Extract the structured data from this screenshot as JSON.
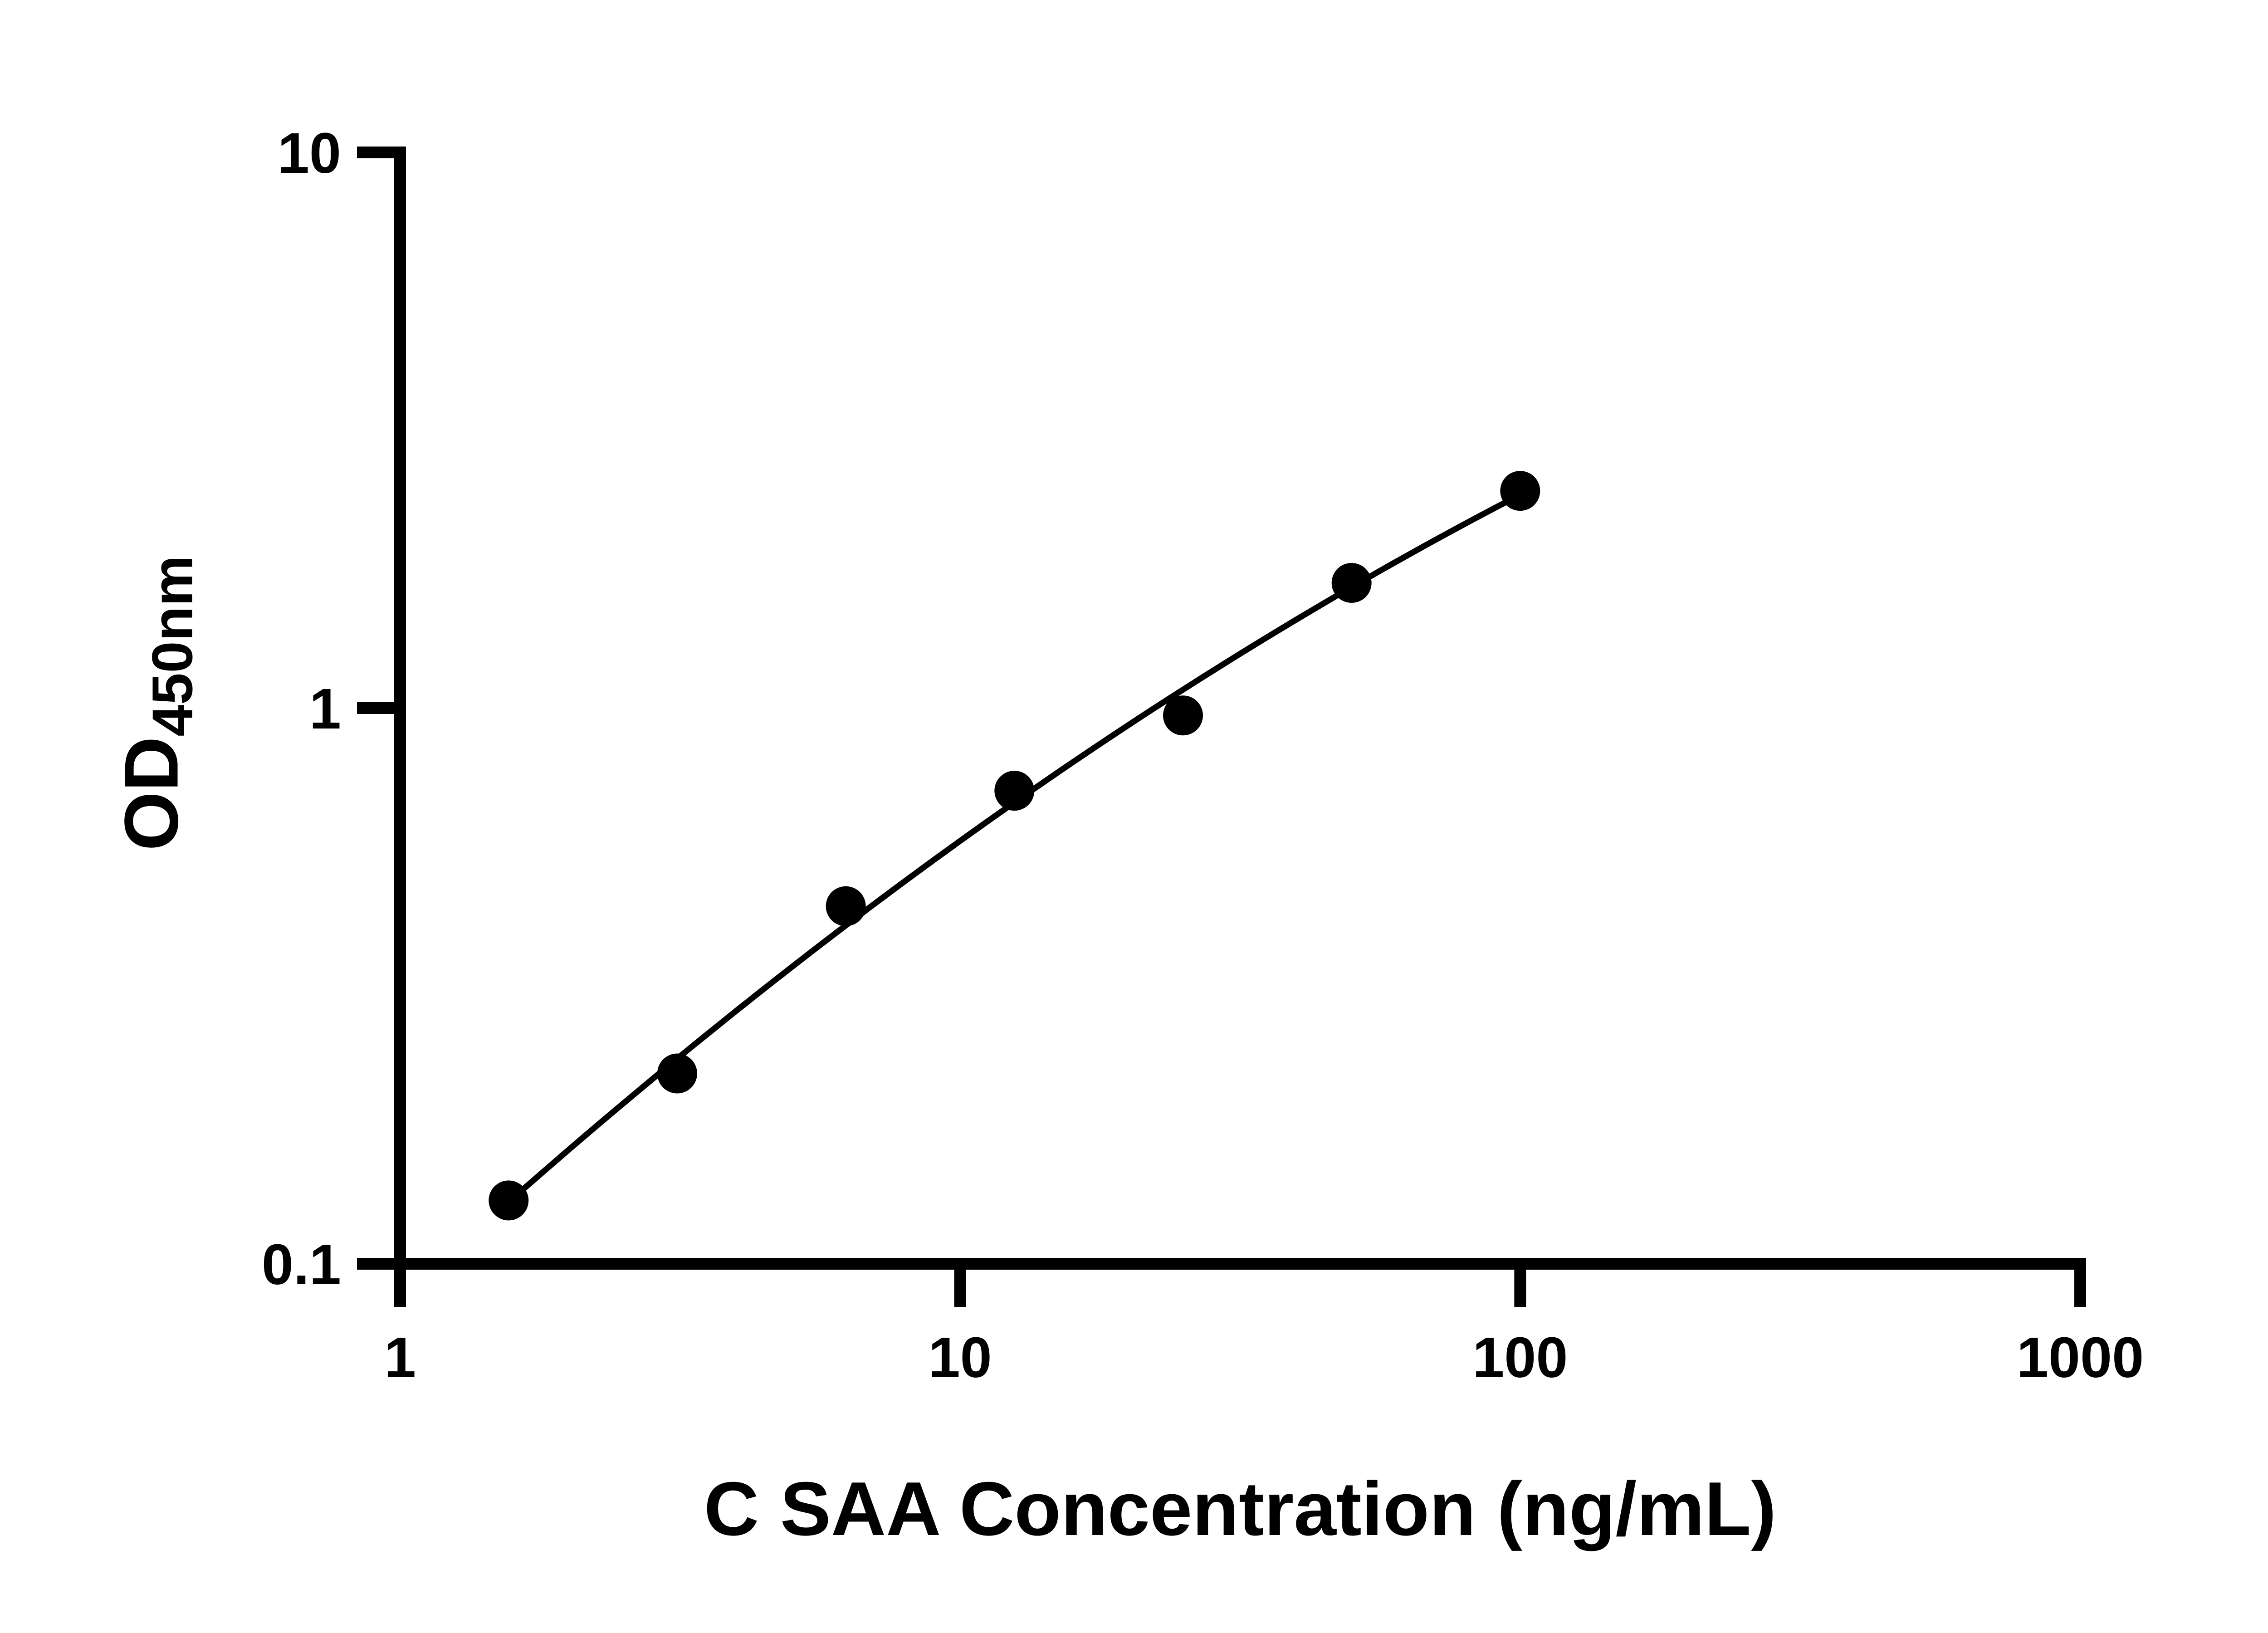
{
  "chart_data": {
    "type": "scatter",
    "title": "",
    "xlabel": "C SAA Concentration (ng/mL)",
    "ylabel_main": "OD",
    "ylabel_sub": "450nm",
    "x_scale": "log",
    "y_scale": "log",
    "xlim": [
      1,
      1000
    ],
    "ylim": [
      0.1,
      10
    ],
    "x_ticks": [
      1,
      10,
      100,
      1000
    ],
    "y_ticks": [
      0.1,
      1,
      10
    ],
    "grid": false,
    "legend": false,
    "point_color": "#000000",
    "line_color": "#000000",
    "background_color": "#ffffff",
    "fit": "quadratic-in-log-log",
    "curve_x_range": [
      1.5,
      101
    ],
    "points": [
      {
        "x": 1.5625,
        "y": 0.13
      },
      {
        "x": 3.125,
        "y": 0.22
      },
      {
        "x": 6.25,
        "y": 0.44
      },
      {
        "x": 12.5,
        "y": 0.71
      },
      {
        "x": 25,
        "y": 0.97
      },
      {
        "x": 50,
        "y": 1.68
      },
      {
        "x": 100,
        "y": 2.46
      }
    ]
  }
}
